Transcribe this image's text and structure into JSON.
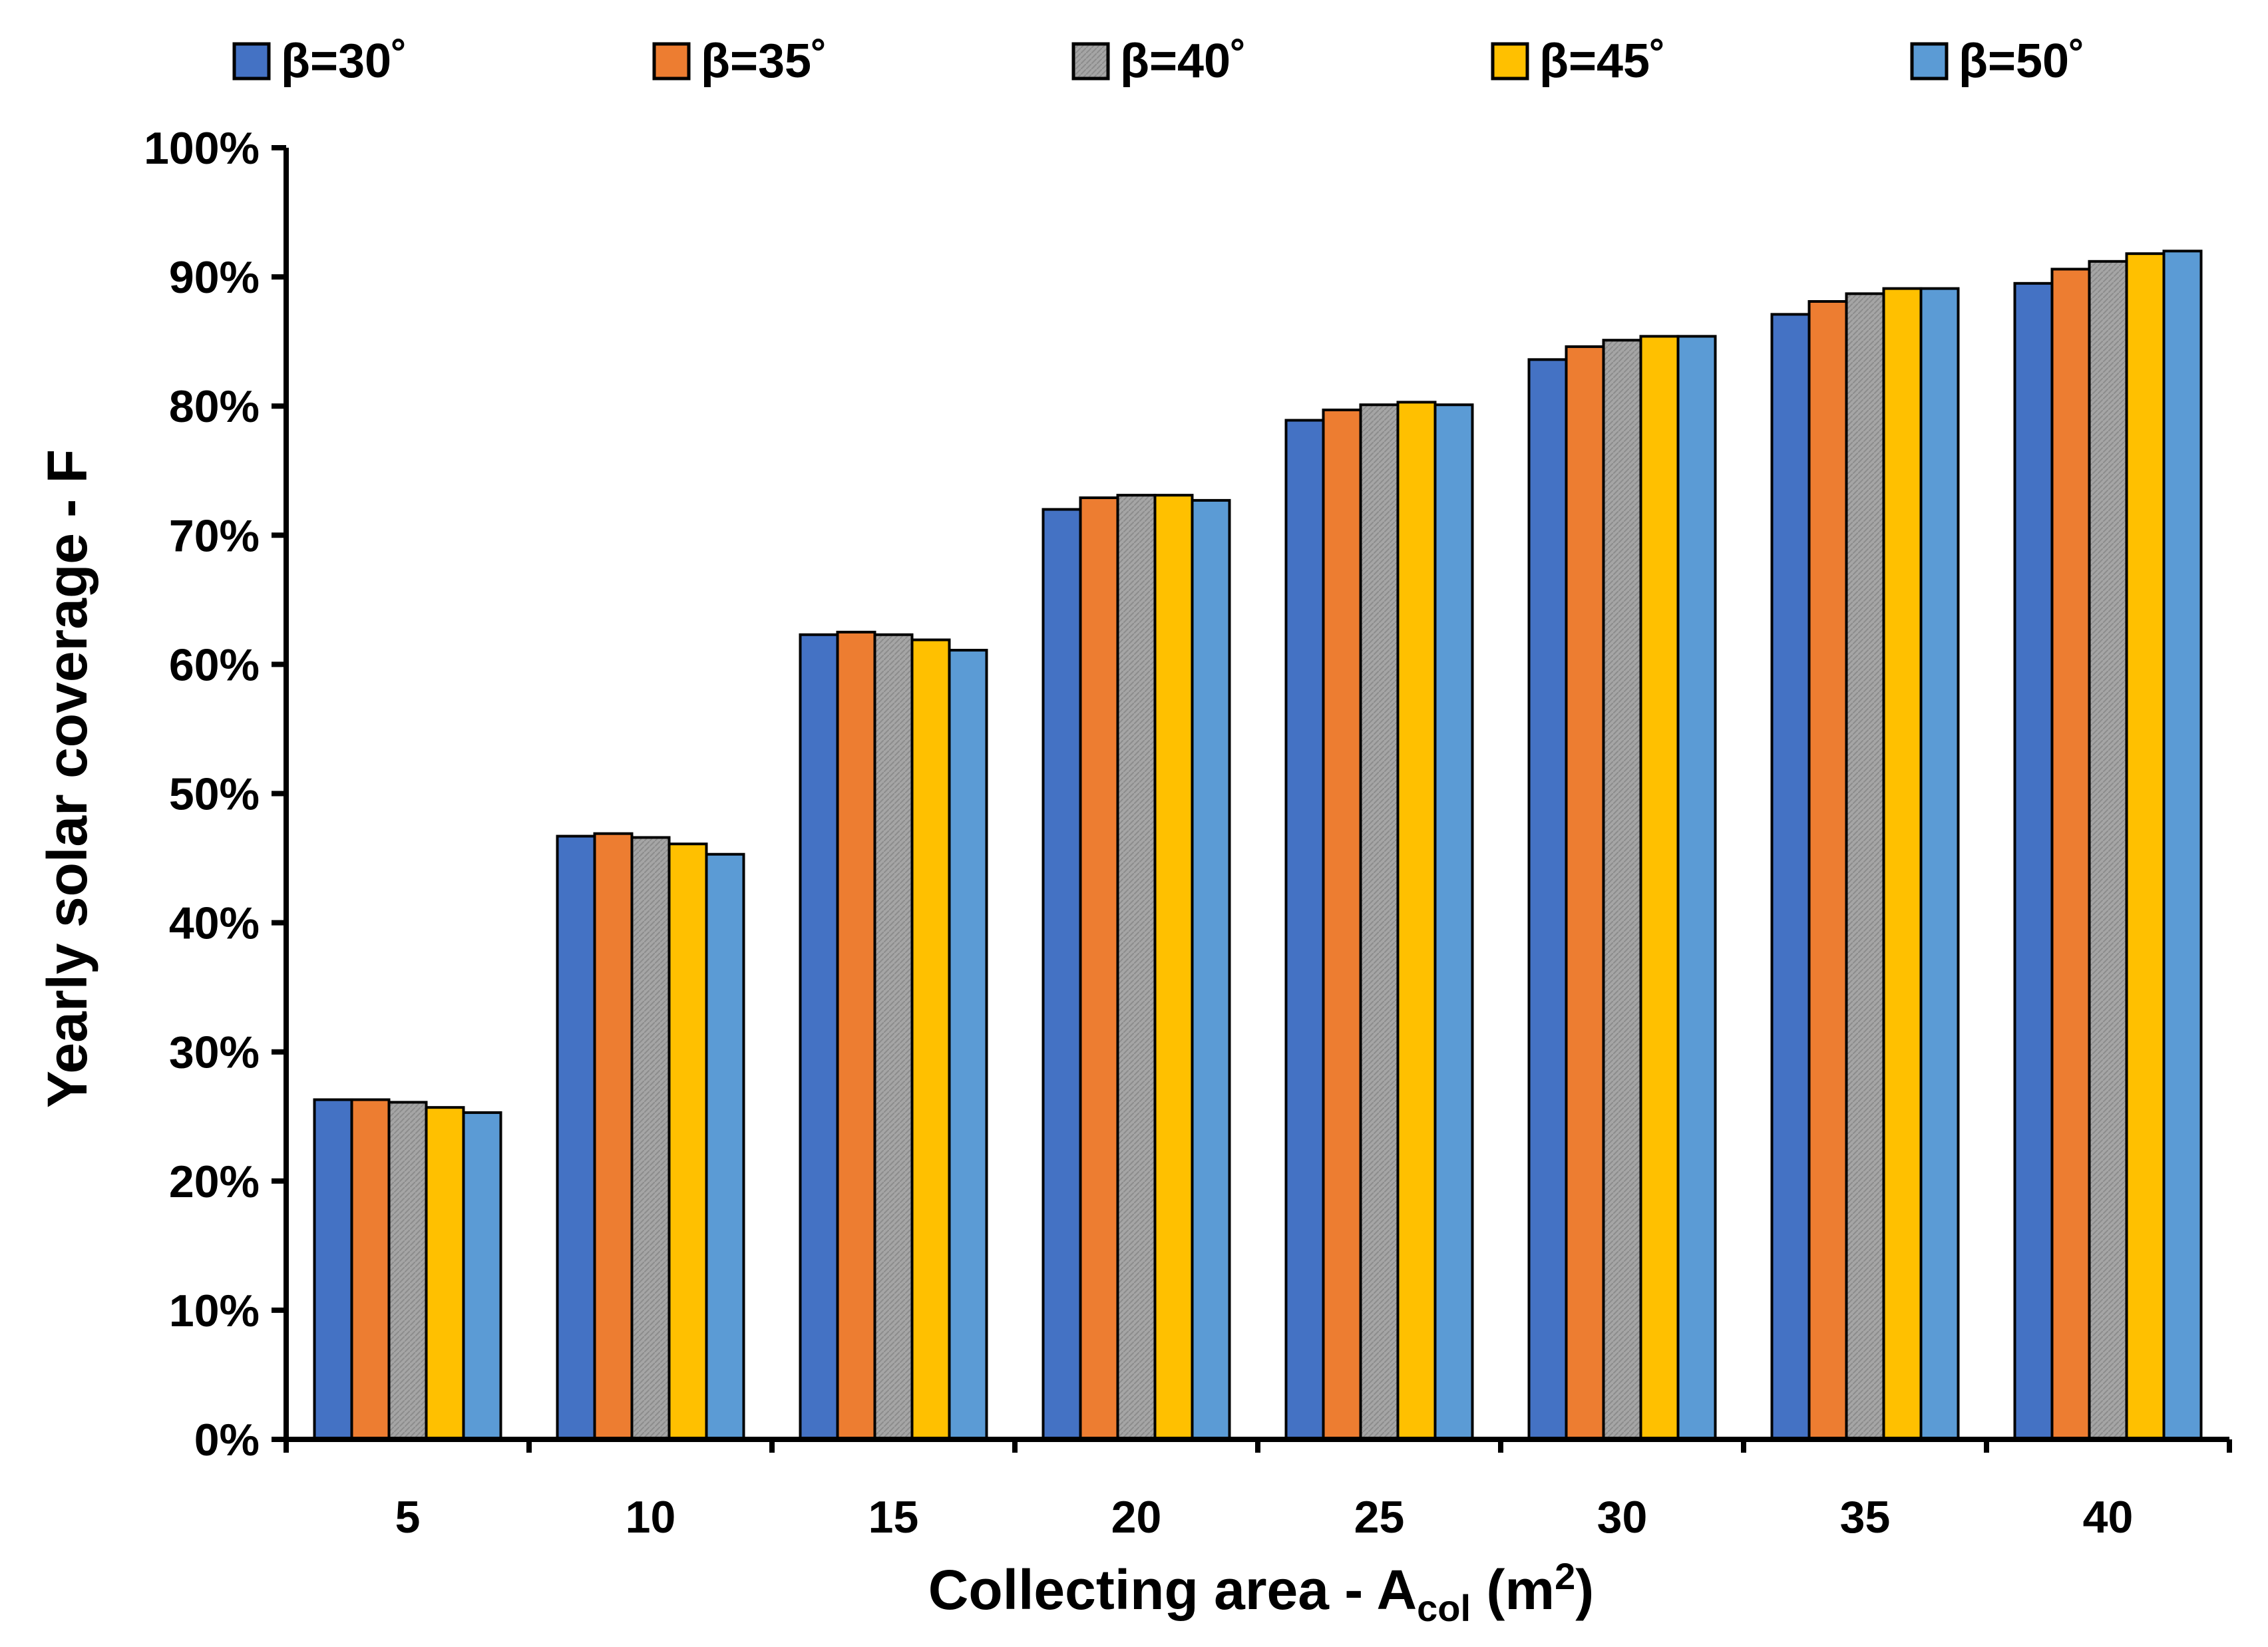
{
  "chart_data": {
    "type": "bar",
    "title": "",
    "xlabel_main": "Collecting area - A",
    "xlabel_sub": "col",
    "xlabel_unit": " (m",
    "xlabel_sup": "2",
    "xlabel_close": ")",
    "ylabel": "Yearly solar coverage - F",
    "ylim": [
      0,
      100
    ],
    "y_ticks": [
      "0%",
      "10%",
      "20%",
      "30%",
      "40%",
      "50%",
      "60%",
      "70%",
      "80%",
      "90%",
      "100%"
    ],
    "categories": [
      "5",
      "10",
      "15",
      "20",
      "25",
      "30",
      "35",
      "40"
    ],
    "legend_position": "top",
    "series": [
      {
        "name": "β=30˚",
        "color": "#4472C4",
        "pattern": false,
        "values": [
          26.3,
          46.7,
          62.3,
          72.0,
          78.9,
          83.6,
          87.1,
          89.5
        ]
      },
      {
        "name": "β=35˚",
        "color": "#ED7D31",
        "pattern": false,
        "values": [
          26.3,
          46.9,
          62.5,
          72.9,
          79.7,
          84.6,
          88.1,
          90.6
        ]
      },
      {
        "name": "β=40˚",
        "color": "#A5A5A5",
        "pattern": true,
        "values": [
          26.1,
          46.6,
          62.3,
          73.1,
          80.1,
          85.1,
          88.7,
          91.2
        ]
      },
      {
        "name": "β=45˚",
        "color": "#FFC000",
        "pattern": false,
        "values": [
          25.7,
          46.1,
          61.9,
          73.1,
          80.3,
          85.4,
          89.1,
          91.8
        ]
      },
      {
        "name": "β=50˚",
        "color": "#5B9BD5",
        "pattern": false,
        "values": [
          25.3,
          45.3,
          61.1,
          72.7,
          80.1,
          85.4,
          89.1,
          92.0
        ]
      }
    ]
  }
}
